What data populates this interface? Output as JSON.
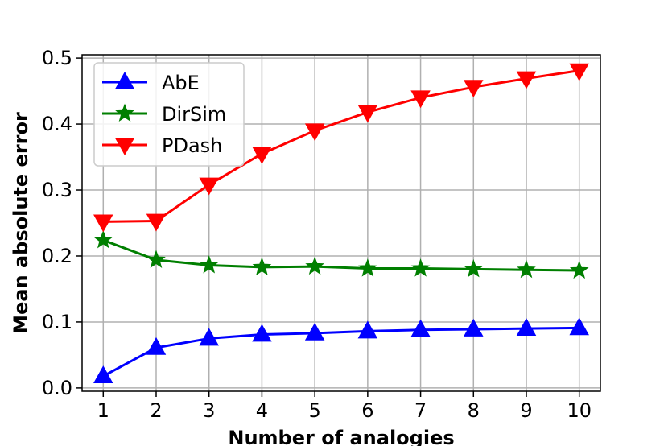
{
  "chart_data": {
    "type": "line",
    "xlabel": "Number of analogies",
    "ylabel": "Mean absolute error",
    "x": [
      1,
      2,
      3,
      4,
      5,
      6,
      7,
      8,
      9,
      10
    ],
    "xticks": [
      "1",
      "2",
      "3",
      "4",
      "5",
      "6",
      "7",
      "8",
      "9",
      "10"
    ],
    "yticks": [
      "0.0",
      "0.1",
      "0.2",
      "0.3",
      "0.4",
      "0.5"
    ],
    "xlim": [
      0.6,
      10.4
    ],
    "ylim": [
      -0.005,
      0.505
    ],
    "grid": true,
    "legend_position": "top-left",
    "series": [
      {
        "name": "AbE",
        "color": "#0000ff",
        "marker": "triangle-up",
        "values": [
          0.018,
          0.061,
          0.075,
          0.081,
          0.083,
          0.086,
          0.088,
          0.089,
          0.09,
          0.091
        ]
      },
      {
        "name": "DirSim",
        "color": "#007f00",
        "marker": "star",
        "values": [
          0.224,
          0.194,
          0.186,
          0.183,
          0.184,
          0.181,
          0.181,
          0.18,
          0.179,
          0.178
        ]
      },
      {
        "name": "PDash",
        "color": "#ff0000",
        "marker": "triangle-down",
        "values": [
          0.252,
          0.253,
          0.308,
          0.355,
          0.39,
          0.418,
          0.44,
          0.456,
          0.469,
          0.481
        ]
      }
    ]
  }
}
